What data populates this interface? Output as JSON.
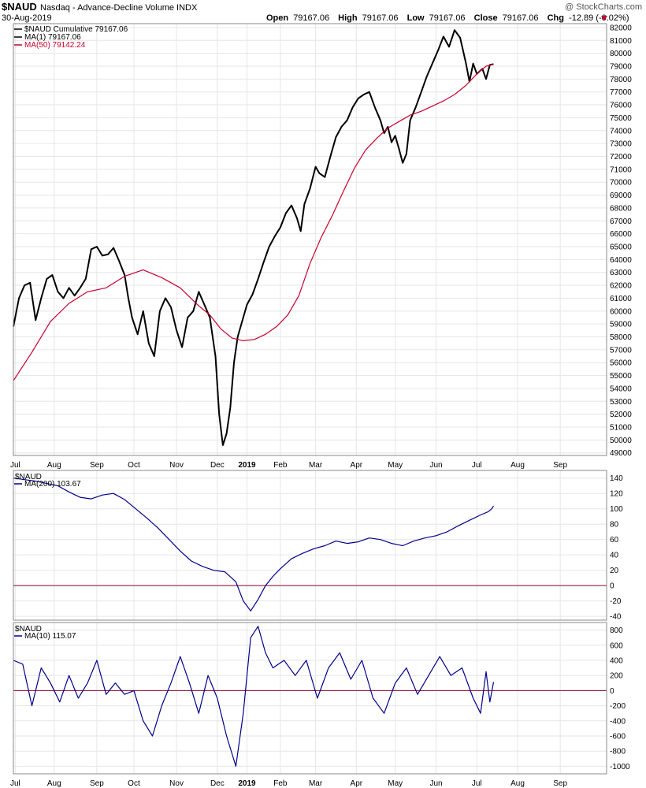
{
  "header": {
    "symbol": "$NAUD",
    "name": "Nasdaq - Advance-Decline Volume INDX",
    "date": "30-Aug-2019",
    "watermark": "@ StockCharts.com",
    "open_label": "Open",
    "open": "79167.06",
    "high_label": "High",
    "high": "79167.06",
    "low_label": "Low",
    "low": "79167.06",
    "close_label": "Close",
    "close": "79167.06",
    "chg_label": "Chg",
    "chg": "-12.89 (-0.02%)",
    "chg_icon": "down-triangle-icon"
  },
  "colors": {
    "price": "#000000",
    "ma50": "#c8002a",
    "panel_line": "#00008b",
    "zero_line": "#8b0030",
    "grid": "#e6e6e6"
  },
  "x_axis": {
    "months": [
      "Jul",
      "Aug",
      "Sep",
      "Oct",
      "Nov",
      "Dec",
      "2019",
      "Feb",
      "Mar",
      "Apr",
      "May",
      "Jun",
      "Jul",
      "Aug",
      "Sep"
    ],
    "month_positions": [
      1,
      22,
      45,
      65,
      88,
      110,
      126,
      144,
      163,
      185,
      206,
      228,
      250,
      272,
      295
    ],
    "range": [
      0,
      320
    ]
  },
  "chart_data": [
    {
      "type": "line",
      "legend": [
        "$NAUD Cumulative 79167.06",
        "MA(1) 79167.06",
        "MA(50) 79142.24"
      ],
      "y_ticks": [
        49000,
        50000,
        51000,
        52000,
        53000,
        54000,
        55000,
        56000,
        57000,
        58000,
        59000,
        60000,
        61000,
        62000,
        63000,
        64000,
        65000,
        66000,
        67000,
        68000,
        69000,
        70000,
        71000,
        72000,
        73000,
        74000,
        75000,
        76000,
        77000,
        78000,
        79000,
        80000,
        81000,
        82000
      ],
      "ylim": [
        48800,
        82300
      ],
      "series": [
        {
          "name": "$NAUD Cumulative 79167.06",
          "color": "#000000",
          "points": [
            [
              0,
              58800
            ],
            [
              3,
              61000
            ],
            [
              6,
              62000
            ],
            [
              9,
              62200
            ],
            [
              12,
              59300
            ],
            [
              15,
              61000
            ],
            [
              18,
              62500
            ],
            [
              21,
              62800
            ],
            [
              24,
              61500
            ],
            [
              27,
              61000
            ],
            [
              30,
              61800
            ],
            [
              33,
              61200
            ],
            [
              36,
              61800
            ],
            [
              39,
              62500
            ],
            [
              42,
              64800
            ],
            [
              45,
              65000
            ],
            [
              48,
              64300
            ],
            [
              51,
              64400
            ],
            [
              54,
              64900
            ],
            [
              57,
              63900
            ],
            [
              60,
              62800
            ],
            [
              62,
              61000
            ],
            [
              64,
              59500
            ],
            [
              67,
              58200
            ],
            [
              70,
              60000
            ],
            [
              73,
              57500
            ],
            [
              76,
              56500
            ],
            [
              79,
              60000
            ],
            [
              82,
              61000
            ],
            [
              85,
              60300
            ],
            [
              88,
              58500
            ],
            [
              91,
              57200
            ],
            [
              94,
              59500
            ],
            [
              97,
              60000
            ],
            [
              100,
              61500
            ],
            [
              103,
              60500
            ],
            [
              106,
              59500
            ],
            [
              109,
              56500
            ],
            [
              111,
              52000
            ],
            [
              113,
              49600
            ],
            [
              115,
              50500
            ],
            [
              117,
              52500
            ],
            [
              119,
              56000
            ],
            [
              121,
              58000
            ],
            [
              123,
              59000
            ],
            [
              126,
              60500
            ],
            [
              129,
              61300
            ],
            [
              132,
              62500
            ],
            [
              135,
              63800
            ],
            [
              138,
              65000
            ],
            [
              141,
              65800
            ],
            [
              144,
              66500
            ],
            [
              147,
              67600
            ],
            [
              150,
              68200
            ],
            [
              153,
              67200
            ],
            [
              155,
              66200
            ],
            [
              157,
              68300
            ],
            [
              160,
              69500
            ],
            [
              163,
              71200
            ],
            [
              165,
              70700
            ],
            [
              168,
              70400
            ],
            [
              171,
              72000
            ],
            [
              174,
              73500
            ],
            [
              177,
              74300
            ],
            [
              180,
              74800
            ],
            [
              183,
              75800
            ],
            [
              186,
              76500
            ],
            [
              189,
              76800
            ],
            [
              192,
              77000
            ],
            [
              195,
              75800
            ],
            [
              198,
              74800
            ],
            [
              200,
              73800
            ],
            [
              202,
              74300
            ],
            [
              204,
              73100
            ],
            [
              206,
              73600
            ],
            [
              208,
              72600
            ],
            [
              210,
              71500
            ],
            [
              212,
              72200
            ],
            [
              214,
              74800
            ],
            [
              217,
              75800
            ],
            [
              220,
              77000
            ],
            [
              223,
              78200
            ],
            [
              226,
              79200
            ],
            [
              229,
              80200
            ],
            [
              232,
              81300
            ],
            [
              235,
              80500
            ],
            [
              238,
              81800
            ],
            [
              241,
              81200
            ],
            [
              244,
              79300
            ],
            [
              246,
              77800
            ],
            [
              248,
              79200
            ],
            [
              250,
              78400
            ],
            [
              253,
              78800
            ],
            [
              255,
              78000
            ],
            [
              257,
              79100
            ],
            [
              259,
              79167
            ]
          ]
        },
        {
          "name": "MA(50) 79142.24",
          "color": "#c8002a",
          "points": [
            [
              0,
              54600
            ],
            [
              10,
              56800
            ],
            [
              20,
              59200
            ],
            [
              30,
              60600
            ],
            [
              40,
              61500
            ],
            [
              50,
              61800
            ],
            [
              60,
              62700
            ],
            [
              70,
              63200
            ],
            [
              80,
              62600
            ],
            [
              90,
              61800
            ],
            [
              100,
              60400
            ],
            [
              106,
              59700
            ],
            [
              112,
              58600
            ],
            [
              118,
              57900
            ],
            [
              124,
              57700
            ],
            [
              130,
              57800
            ],
            [
              136,
              58200
            ],
            [
              142,
              58800
            ],
            [
              148,
              59700
            ],
            [
              154,
              61200
            ],
            [
              160,
              63700
            ],
            [
              166,
              65700
            ],
            [
              172,
              67400
            ],
            [
              178,
              69300
            ],
            [
              184,
              71100
            ],
            [
              190,
              72500
            ],
            [
              196,
              73400
            ],
            [
              202,
              74200
            ],
            [
              208,
              74700
            ],
            [
              214,
              75200
            ],
            [
              220,
              75500
            ],
            [
              226,
              75900
            ],
            [
              232,
              76300
            ],
            [
              238,
              76800
            ],
            [
              244,
              77500
            ],
            [
              250,
              78400
            ],
            [
              255,
              79000
            ],
            [
              259,
              79142
            ]
          ]
        }
      ]
    },
    {
      "type": "line",
      "legend": [
        "$NAUD",
        "MA(200) 103.67"
      ],
      "y_ticks": [
        -40,
        -20,
        0,
        20,
        40,
        60,
        80,
        100,
        120,
        140
      ],
      "ylim": [
        -45,
        150
      ],
      "series": [
        {
          "name": "MA(200) 103.67",
          "color": "#00008b",
          "points": [
            [
              0,
              140
            ],
            [
              6,
              138
            ],
            [
              12,
              136
            ],
            [
              18,
              133
            ],
            [
              24,
              130
            ],
            [
              30,
              122
            ],
            [
              36,
              115
            ],
            [
              42,
              113
            ],
            [
              48,
              118
            ],
            [
              54,
              120
            ],
            [
              60,
              112
            ],
            [
              66,
              100
            ],
            [
              72,
              88
            ],
            [
              78,
              75
            ],
            [
              84,
              60
            ],
            [
              90,
              45
            ],
            [
              96,
              32
            ],
            [
              102,
              25
            ],
            [
              108,
              20
            ],
            [
              114,
              18
            ],
            [
              120,
              5
            ],
            [
              124,
              -20
            ],
            [
              128,
              -33
            ],
            [
              132,
              -18
            ],
            [
              136,
              0
            ],
            [
              140,
              12
            ],
            [
              144,
              22
            ],
            [
              150,
              35
            ],
            [
              156,
              42
            ],
            [
              162,
              48
            ],
            [
              168,
              52
            ],
            [
              174,
              58
            ],
            [
              180,
              55
            ],
            [
              186,
              57
            ],
            [
              192,
              62
            ],
            [
              198,
              60
            ],
            [
              204,
              55
            ],
            [
              210,
              52
            ],
            [
              216,
              58
            ],
            [
              222,
              62
            ],
            [
              228,
              65
            ],
            [
              234,
              70
            ],
            [
              240,
              78
            ],
            [
              246,
              85
            ],
            [
              252,
              92
            ],
            [
              256,
              96
            ],
            [
              258,
              100
            ],
            [
              259,
              103.67
            ]
          ]
        }
      ]
    },
    {
      "type": "line",
      "legend": [
        "$NAUD",
        "MA(10) 115.07"
      ],
      "y_ticks": [
        -1000,
        -800,
        -600,
        -400,
        -200,
        0,
        200,
        400,
        600,
        800
      ],
      "ylim": [
        -1100,
        900
      ],
      "series": [
        {
          "name": "MA(10) 115.07",
          "color": "#00008b",
          "points": [
            [
              0,
              400
            ],
            [
              5,
              350
            ],
            [
              10,
              -200
            ],
            [
              15,
              300
            ],
            [
              20,
              100
            ],
            [
              25,
              -150
            ],
            [
              30,
              200
            ],
            [
              35,
              -100
            ],
            [
              40,
              100
            ],
            [
              45,
              400
            ],
            [
              50,
              -50
            ],
            [
              55,
              100
            ],
            [
              60,
              -50
            ],
            [
              65,
              0
            ],
            [
              70,
              -400
            ],
            [
              75,
              -600
            ],
            [
              80,
              -200
            ],
            [
              85,
              100
            ],
            [
              90,
              450
            ],
            [
              95,
              100
            ],
            [
              100,
              -300
            ],
            [
              105,
              200
            ],
            [
              110,
              -100
            ],
            [
              115,
              -600
            ],
            [
              120,
              -1000
            ],
            [
              124,
              -300
            ],
            [
              128,
              700
            ],
            [
              132,
              850
            ],
            [
              136,
              500
            ],
            [
              140,
              300
            ],
            [
              146,
              400
            ],
            [
              152,
              200
            ],
            [
              158,
              400
            ],
            [
              164,
              -100
            ],
            [
              170,
              300
            ],
            [
              176,
              500
            ],
            [
              182,
              150
            ],
            [
              188,
              400
            ],
            [
              194,
              -100
            ],
            [
              200,
              -300
            ],
            [
              206,
              100
            ],
            [
              212,
              300
            ],
            [
              218,
              -50
            ],
            [
              224,
              200
            ],
            [
              230,
              450
            ],
            [
              236,
              200
            ],
            [
              242,
              300
            ],
            [
              248,
              -100
            ],
            [
              252,
              -300
            ],
            [
              255,
              250
            ],
            [
              257,
              -150
            ],
            [
              259,
              115.07
            ]
          ]
        }
      ]
    }
  ]
}
